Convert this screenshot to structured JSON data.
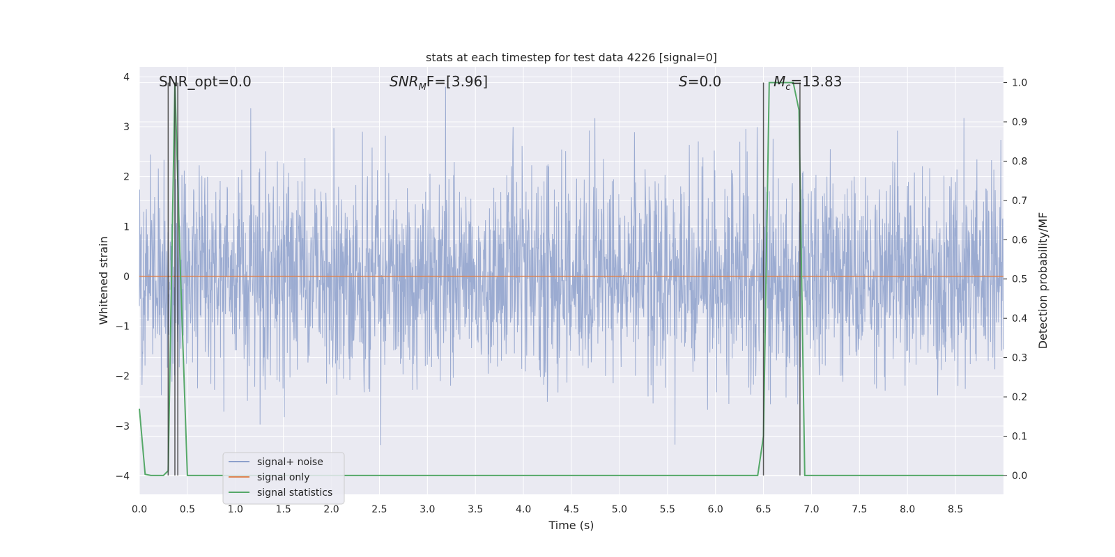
{
  "chart_data": {
    "type": "line",
    "title": "stats at each timestep for test data 4226 [signal=0]",
    "xlabel": "Time (s)",
    "ylabel_left": "Whitened strain",
    "ylabel_right": "Detection probability/MF",
    "xlim": [
      0.0,
      9.0
    ],
    "ylim_left": [
      -4.37,
      4.2
    ],
    "ylim_right": [
      -0.048,
      1.04
    ],
    "x_ticks": [
      "0.0",
      "0.5",
      "1.0",
      "1.5",
      "2.0",
      "2.5",
      "3.0",
      "3.5",
      "4.0",
      "4.5",
      "5.0",
      "5.5",
      "6.0",
      "6.5",
      "7.0",
      "7.5",
      "8.0",
      "8.5"
    ],
    "y_ticks_left": [
      "4",
      "3",
      "2",
      "1",
      "0",
      "−1",
      "−2",
      "−3",
      "−4"
    ],
    "y_ticks_right": [
      "1.0",
      "0.9",
      "0.8",
      "0.7",
      "0.6",
      "0.5",
      "0.4",
      "0.3",
      "0.2",
      "0.1",
      "0.0"
    ],
    "grid": true,
    "legend_position": "lower-left",
    "annotations": {
      "snr_opt": "SNR_opt=0.0",
      "snr_mf_main": "SNR",
      "snr_mf_sub": "M",
      "snr_mf_rest": "F=[3.96]",
      "s_main": "S",
      "s_rest": "=0.0",
      "mc_main": "M",
      "mc_sub": "c",
      "mc_rest": "=13.83"
    },
    "series": [
      {
        "name": "signal+ noise",
        "color": "#8da0cb",
        "axis": "left",
        "note_values": "dense noise trace, approx. range -3.8 to 3.8"
      },
      {
        "name": "signal only",
        "color": "#dd8452",
        "axis": "left",
        "x": [
          0.0,
          9.0
        ],
        "y": [
          0.0,
          0.0
        ]
      },
      {
        "name": "signal statistics",
        "color": "#55a868",
        "axis": "right",
        "x": [
          0.0,
          0.06,
          0.12,
          0.25,
          0.3,
          0.37,
          0.43,
          0.5,
          1.0,
          2.0,
          3.0,
          4.0,
          5.0,
          6.0,
          6.44,
          6.5,
          6.56,
          6.62,
          6.75,
          6.81,
          6.87,
          6.93,
          7.0,
          8.0,
          9.0
        ],
        "y": [
          0.17,
          0.003,
          0.0,
          0.0,
          0.012,
          1.0,
          0.5,
          0.0,
          0.0,
          0.0,
          0.0,
          0.0,
          0.0,
          0.0,
          0.0,
          0.1,
          1.0,
          1.0,
          1.0,
          1.0,
          0.93,
          0.0,
          0.0,
          0.0,
          0.0
        ]
      }
    ],
    "vertical_markers": [
      0.3,
      0.37,
      0.4,
      6.5,
      6.88
    ]
  }
}
